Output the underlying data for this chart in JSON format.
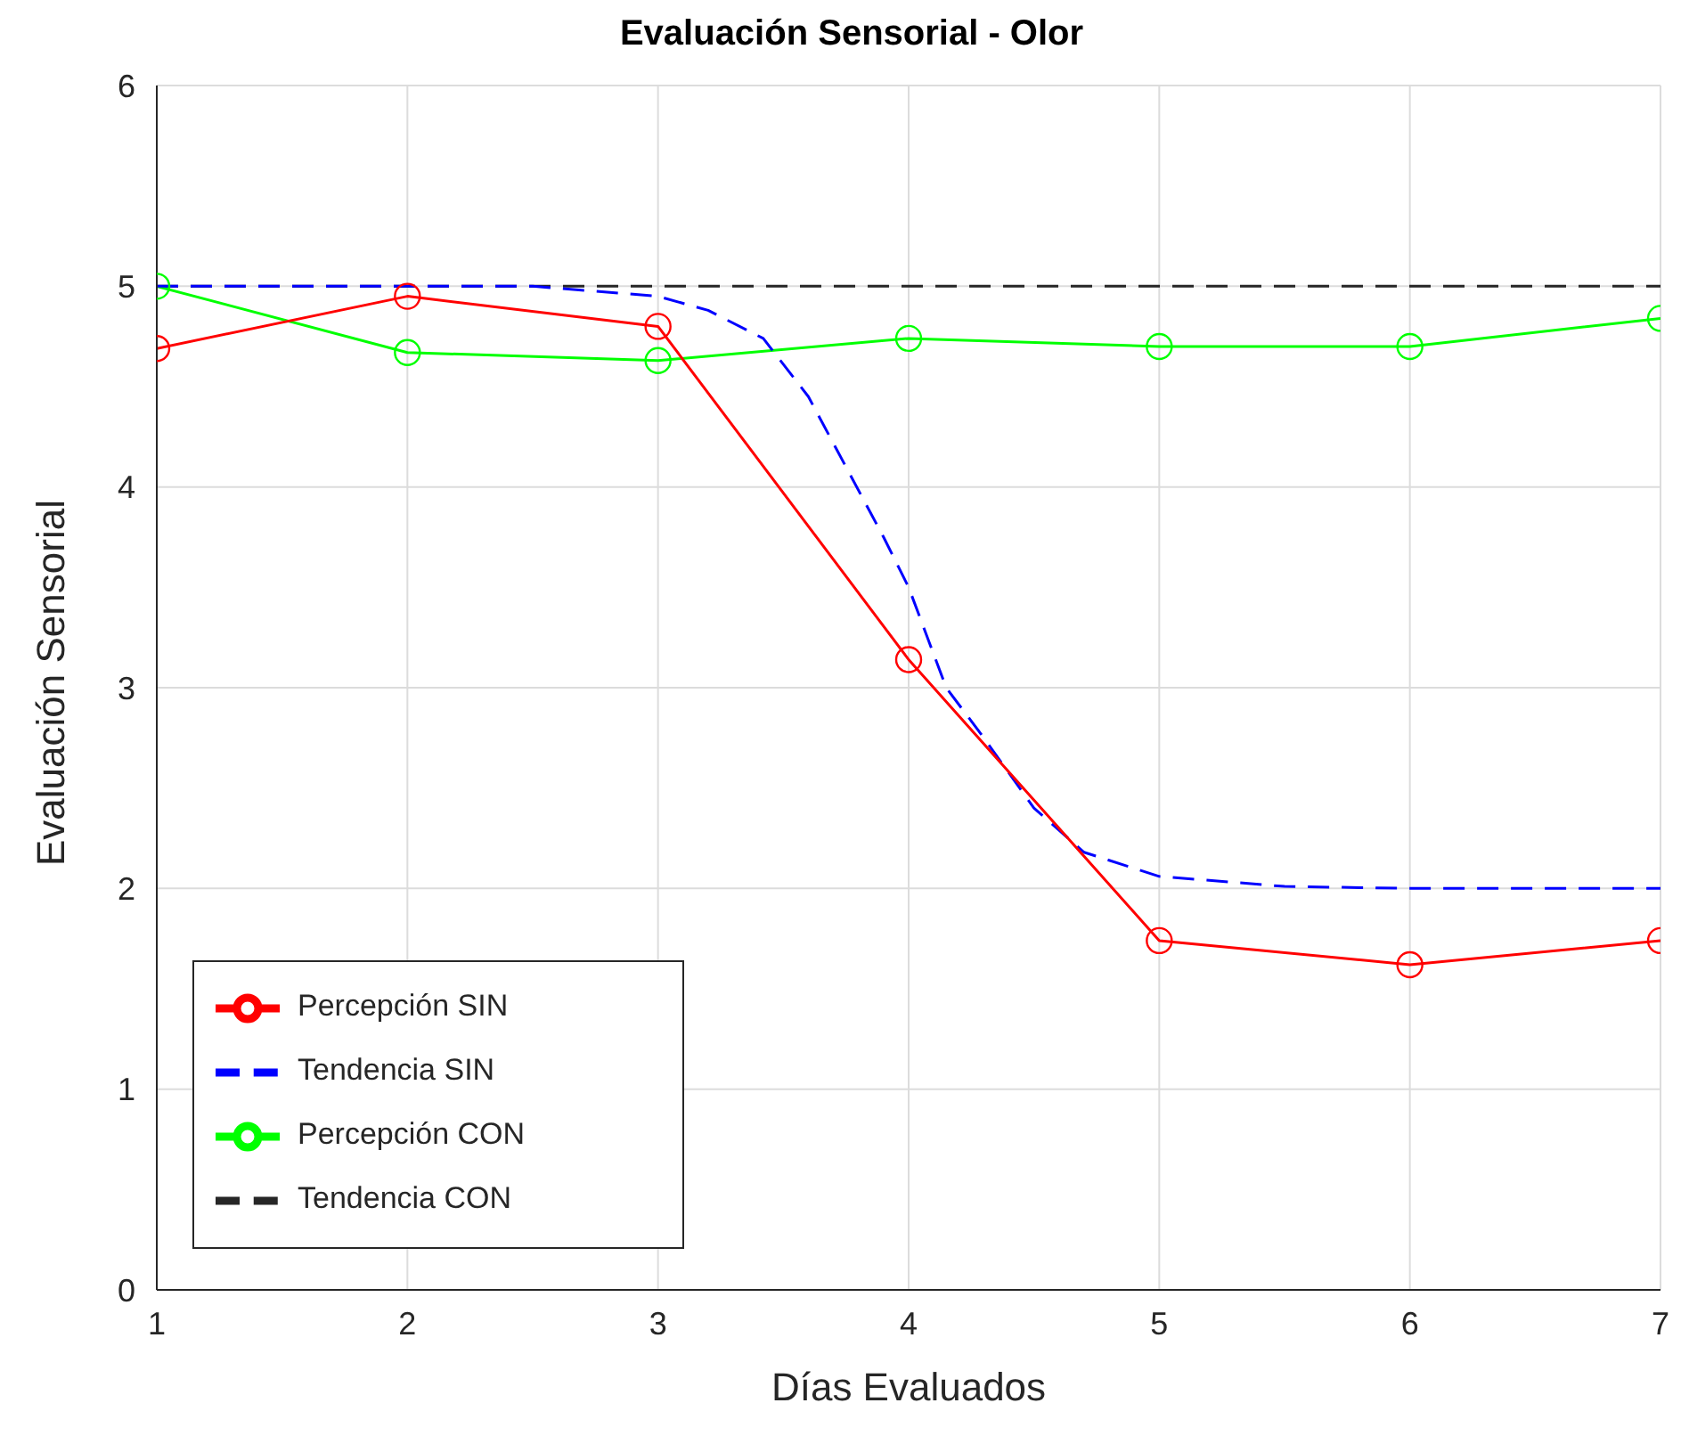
{
  "chart_data": {
    "type": "line",
    "title": "Evaluación Sensorial - Olor",
    "xlabel": "Días Evaluados",
    "ylabel": "Evaluación Sensorial",
    "xlim": [
      1,
      7
    ],
    "xticks": [
      1,
      2,
      3,
      4,
      5,
      6,
      7
    ],
    "ylim": [
      0,
      6
    ],
    "yticks": [
      0,
      1,
      2,
      3,
      4,
      5,
      6
    ],
    "grid": true,
    "legend": "bottom left",
    "series": [
      {
        "name": "Percepción SIN",
        "color": "#ff0000",
        "marker": "circle",
        "line_style": "solid",
        "x": [
          1,
          2,
          3,
          4,
          5,
          6,
          7
        ],
        "values": [
          4.69,
          4.95,
          4.8,
          3.14,
          1.74,
          1.62,
          1.74
        ]
      },
      {
        "name": "Tendencia SIN",
        "color": "#0000ff",
        "marker": "none",
        "line_style": "dashed",
        "x": [
          1,
          2,
          2.5,
          3,
          3.2,
          3.42,
          3.6,
          3.75,
          3.9,
          4,
          4.15,
          4.3,
          4.5,
          4.7,
          5,
          5.5,
          6,
          7
        ],
        "values": [
          5,
          5,
          5,
          4.95,
          4.88,
          4.74,
          4.45,
          4.1,
          3.75,
          3.5,
          3.0,
          2.75,
          2.4,
          2.18,
          2.06,
          2.01,
          2,
          2
        ]
      },
      {
        "name": "Percepción CON",
        "color": "#00ff00",
        "marker": "circle",
        "line_style": "solid",
        "x": [
          1,
          2,
          3,
          4,
          5,
          6,
          7
        ],
        "values": [
          5,
          4.67,
          4.63,
          4.74,
          4.7,
          4.7,
          4.84
        ]
      },
      {
        "name": "Tendencia CON",
        "color": "#262626",
        "marker": "none",
        "line_style": "dashed",
        "x": [
          1,
          2,
          3,
          4,
          5,
          6,
          7
        ],
        "values": [
          5,
          5,
          5,
          5,
          5,
          5,
          5
        ]
      }
    ]
  }
}
